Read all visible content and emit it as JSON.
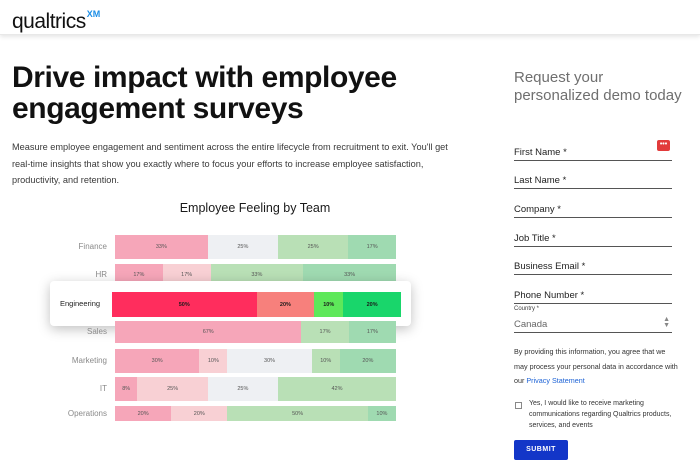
{
  "brand": {
    "name": "qualtrics",
    "suffix": "XM"
  },
  "hero": {
    "headline": "Drive impact with employee engagement surveys",
    "intro": "Measure employee engagement and sentiment across the entire lifecycle from recruitment to exit. You'll get real-time insights that show you exactly where to focus your efforts to increase employee satisfaction, productivity, and retention."
  },
  "chart_data": {
    "type": "bar",
    "stacked": true,
    "orientation": "horizontal",
    "title": "Employee Feeling by Team",
    "highlighted": "Engineering",
    "colors": [
      "#f6a6b9",
      "#f8d0d4",
      "#eef0f3",
      "#b9e0b6",
      "#9fdab1"
    ],
    "highlight_colors": [
      "#ff2d5d",
      "#f7807c",
      "#5ee85a",
      "#19d66b"
    ],
    "rows": [
      {
        "team": "Finance",
        "values": [
          33,
          0,
          25,
          25,
          17
        ],
        "labels": [
          "33%",
          "",
          "25%",
          "25%",
          "17%"
        ]
      },
      {
        "team": "HR",
        "values": [
          17,
          17,
          0,
          33,
          33
        ],
        "labels": [
          "17%",
          "17%",
          "",
          "33%",
          "33%"
        ]
      },
      {
        "team": "Engineering",
        "values": [
          50,
          20,
          10,
          20
        ],
        "labels": [
          "50%",
          "20%",
          "10%",
          "20%"
        ]
      },
      {
        "team": "Sales",
        "values": [
          67,
          0,
          0,
          17,
          17
        ],
        "labels": [
          "67%",
          "",
          "",
          "17%",
          "17%"
        ]
      },
      {
        "team": "Marketing",
        "values": [
          30,
          10,
          30,
          10,
          20
        ],
        "labels": [
          "30%",
          "10%",
          "30%",
          "10%",
          "20%"
        ]
      },
      {
        "team": "IT",
        "values": [
          8,
          25,
          25,
          42,
          0
        ],
        "labels": [
          "8%",
          "25%",
          "25%",
          "42%",
          ""
        ]
      },
      {
        "team": "Operations",
        "values": [
          20,
          20,
          0,
          50,
          10
        ],
        "labels": [
          "20%",
          "20%",
          "",
          "50%",
          "10%"
        ]
      }
    ]
  },
  "form": {
    "title": "Request your personalized demo today",
    "fields": {
      "first_name": "First Name *",
      "last_name": "Last Name *",
      "company": "Company *",
      "job_title": "Job Title *",
      "email": "Business Email *",
      "phone": "Phone Number *"
    },
    "country_label": "Country *",
    "country_value": "Canada",
    "password_icon_text": "•••",
    "privacy_text": "By providing this information, you agree that we may process your personal data in accordance with our",
    "privacy_link": "Privacy Statement",
    "consent": "Yes, I would like to receive marketing communications regarding Qualtrics products, services, and events",
    "submit": "SUBMIT"
  }
}
